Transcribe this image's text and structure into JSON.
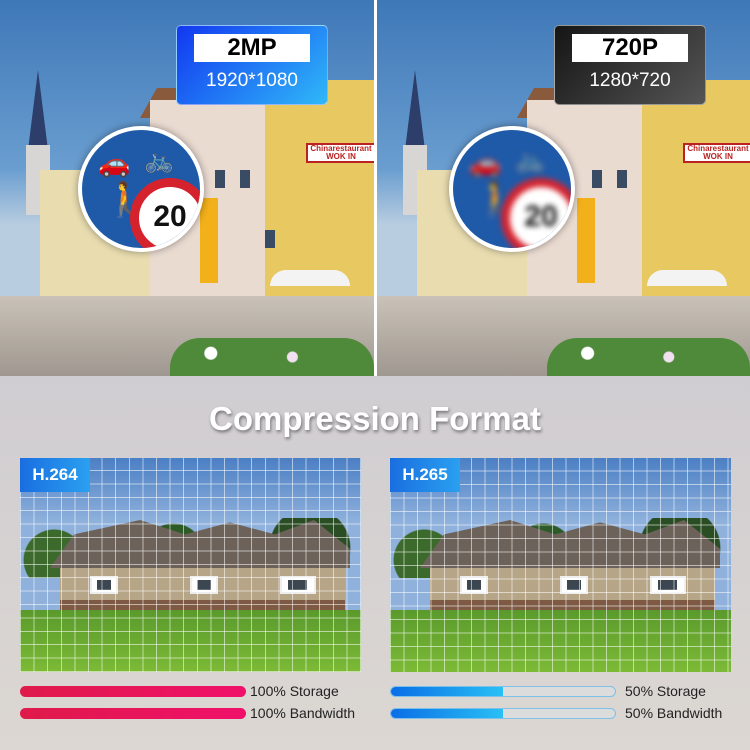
{
  "top_compare": {
    "left": {
      "label": "2MP",
      "resolution": "1920*1080",
      "badge_color": "#1a4ff0",
      "shop_sign": "Chinarestaurant WOK IN",
      "sign_number": "20"
    },
    "right": {
      "label": "720P",
      "resolution": "1280*720",
      "badge_color": "#2a2a2a",
      "shop_sign": "Chinarestaurant WOK IN",
      "sign_number": "20"
    }
  },
  "section_title": "Compression Format",
  "codecs": [
    {
      "name": "H.264",
      "storage_label": "100% Storage",
      "bandwidth_label": "100% Bandwidth",
      "storage_pct": 100,
      "bandwidth_pct": 100,
      "color": "#e8175a"
    },
    {
      "name": "H.265",
      "storage_label": "50% Storage",
      "bandwidth_label": "50% Bandwidth",
      "storage_pct": 50,
      "bandwidth_pct": 50,
      "color": "#1a8ef0"
    }
  ]
}
